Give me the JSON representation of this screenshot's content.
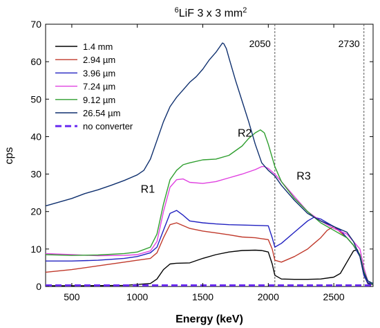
{
  "chart_data": {
    "type": "line",
    "title_prefix": "6",
    "title_main": "LiF 3 x 3 mm",
    "title_suffix": "2",
    "xlabel": "Energy (keV)",
    "ylabel": "cps",
    "xlim": [
      300,
      2800
    ],
    "ylim": [
      0,
      70
    ],
    "xticks": [
      500,
      1000,
      1500,
      2000,
      2500
    ],
    "yticks": [
      0,
      10,
      20,
      30,
      40,
      50,
      60,
      70
    ],
    "grid": false,
    "legend_position": "top-left",
    "vlines": [
      {
        "x": 2050,
        "label": "2050",
        "color": "#555555"
      },
      {
        "x": 2730,
        "label": "2730",
        "color": "#555555"
      }
    ],
    "annotations": [
      {
        "text": "R1",
        "x": 1080,
        "y": 25
      },
      {
        "text": "R2",
        "x": 1820,
        "y": 40
      },
      {
        "text": "R3",
        "x": 2270,
        "y": 28.5
      }
    ],
    "series": [
      {
        "name": "1.4 mm",
        "color": "#000000",
        "dash": false,
        "x": [
          300,
          600,
          900,
          1100,
          1150,
          1200,
          1250,
          1300,
          1400,
          1500,
          1600,
          1700,
          1800,
          1900,
          1950,
          2000,
          2030,
          2050,
          2100,
          2200,
          2300,
          2400,
          2500,
          2550,
          2600,
          2650,
          2680,
          2700,
          2730,
          2760,
          2800
        ],
        "y": [
          0.2,
          0.2,
          0.3,
          0.8,
          2.0,
          4.5,
          6.0,
          6.2,
          6.3,
          7.5,
          8.5,
          9.2,
          9.6,
          9.7,
          9.6,
          9.2,
          6.0,
          3.0,
          2.0,
          1.9,
          1.9,
          2.0,
          2.5,
          3.5,
          6.5,
          9.5,
          9.8,
          8.0,
          3.0,
          0.8,
          0.5
        ]
      },
      {
        "name": "2.94 µm",
        "color": "#c0392b",
        "dash": false,
        "x": [
          300,
          500,
          700,
          900,
          1000,
          1100,
          1150,
          1200,
          1250,
          1300,
          1400,
          1500,
          1600,
          1700,
          1800,
          1900,
          2000,
          2030,
          2050,
          2100,
          2200,
          2300,
          2350,
          2400,
          2450,
          2500,
          2550,
          2600,
          2650,
          2700,
          2730,
          2760,
          2800
        ],
        "y": [
          3.8,
          4.5,
          5.5,
          6.5,
          7.0,
          7.5,
          9.0,
          13.0,
          16.5,
          17.0,
          15.5,
          14.8,
          14.3,
          13.8,
          13.2,
          13.0,
          12.5,
          10.0,
          7.0,
          6.5,
          8.0,
          10.0,
          11.5,
          13.0,
          15.0,
          16.0,
          14.5,
          13.0,
          11.0,
          8.0,
          3.0,
          1.0,
          0.6
        ]
      },
      {
        "name": "3.96 µm",
        "color": "#2020c0",
        "dash": false,
        "x": [
          300,
          500,
          700,
          900,
          1000,
          1100,
          1150,
          1200,
          1250,
          1300,
          1350,
          1400,
          1500,
          1600,
          1700,
          1800,
          1900,
          2000,
          2030,
          2050,
          2100,
          2200,
          2300,
          2350,
          2400,
          2450,
          2500,
          2550,
          2600,
          2650,
          2700,
          2730,
          2760,
          2800
        ],
        "y": [
          6.8,
          6.8,
          7.0,
          7.5,
          8.0,
          9.0,
          10.5,
          15.0,
          19.5,
          20.3,
          19.0,
          17.5,
          17.0,
          16.7,
          16.5,
          16.4,
          16.3,
          16.2,
          13.0,
          10.5,
          11.5,
          14.5,
          17.5,
          18.5,
          18.0,
          17.0,
          16.0,
          15.0,
          13.0,
          11.0,
          8.0,
          3.0,
          1.0,
          0.6
        ]
      },
      {
        "name": "7.24 µm",
        "color": "#e040e0",
        "dash": false,
        "x": [
          300,
          500,
          700,
          900,
          1000,
          1100,
          1150,
          1200,
          1250,
          1300,
          1350,
          1400,
          1500,
          1600,
          1700,
          1800,
          1900,
          1950,
          1970,
          2000,
          2050,
          2100,
          2200,
          2300,
          2400,
          2500,
          2600,
          2650,
          2700,
          2730,
          2760,
          2800
        ],
        "y": [
          8.8,
          8.5,
          8.2,
          8.3,
          8.5,
          9.5,
          12.0,
          20.0,
          26.5,
          28.5,
          28.7,
          27.8,
          27.5,
          28.0,
          29.0,
          30.0,
          31.2,
          32.0,
          32.0,
          31.5,
          30.0,
          28.0,
          24.0,
          20.0,
          17.5,
          15.5,
          14.0,
          12.0,
          10.0,
          5.0,
          1.5,
          0.6
        ]
      },
      {
        "name": "9.12 µm",
        "color": "#2e9e2e",
        "dash": false,
        "x": [
          300,
          500,
          700,
          900,
          1000,
          1100,
          1150,
          1200,
          1250,
          1300,
          1350,
          1400,
          1500,
          1600,
          1700,
          1800,
          1850,
          1900,
          1940,
          1970,
          2000,
          2050,
          2100,
          2200,
          2300,
          2400,
          2500,
          2600,
          2650,
          2700,
          2730,
          2760,
          2800
        ],
        "y": [
          8.5,
          8.3,
          8.4,
          8.8,
          9.2,
          10.5,
          14.0,
          22.0,
          28.5,
          31.0,
          32.5,
          33.0,
          33.8,
          34.0,
          35.0,
          37.5,
          39.5,
          41.0,
          41.8,
          41.0,
          38.0,
          32.0,
          28.0,
          23.5,
          20.0,
          17.0,
          15.0,
          13.0,
          11.0,
          8.5,
          4.0,
          1.5,
          0.6
        ]
      },
      {
        "name": "26.54 µm",
        "color": "#0e2f6e",
        "dash": false,
        "x": [
          300,
          400,
          500,
          600,
          700,
          800,
          900,
          1000,
          1050,
          1100,
          1150,
          1200,
          1250,
          1300,
          1350,
          1400,
          1450,
          1500,
          1550,
          1600,
          1630,
          1650,
          1660,
          1680,
          1700,
          1750,
          1800,
          1850,
          1900,
          1950,
          2000,
          2050,
          2100,
          2200,
          2300,
          2400,
          2500,
          2600,
          2650,
          2700,
          2730,
          2760,
          2800
        ],
        "y": [
          21.5,
          22.5,
          23.5,
          24.8,
          25.8,
          27.0,
          28.3,
          29.8,
          31.0,
          34.0,
          39.0,
          44.0,
          48.0,
          50.5,
          52.5,
          54.5,
          56.0,
          58.0,
          60.5,
          62.5,
          64.0,
          65.0,
          64.8,
          63.5,
          61.0,
          55.0,
          49.5,
          44.0,
          38.0,
          33.0,
          31.0,
          29.5,
          27.0,
          23.0,
          19.5,
          17.5,
          16.0,
          14.5,
          12.0,
          8.0,
          3.5,
          1.5,
          0.8
        ]
      },
      {
        "name": "no converter",
        "color": "#6a2cf0",
        "dash": true,
        "x": [
          300,
          800,
          1300,
          1800,
          2300,
          2800
        ],
        "y": [
          0.3,
          0.3,
          0.3,
          0.3,
          0.3,
          0.3
        ]
      }
    ]
  }
}
